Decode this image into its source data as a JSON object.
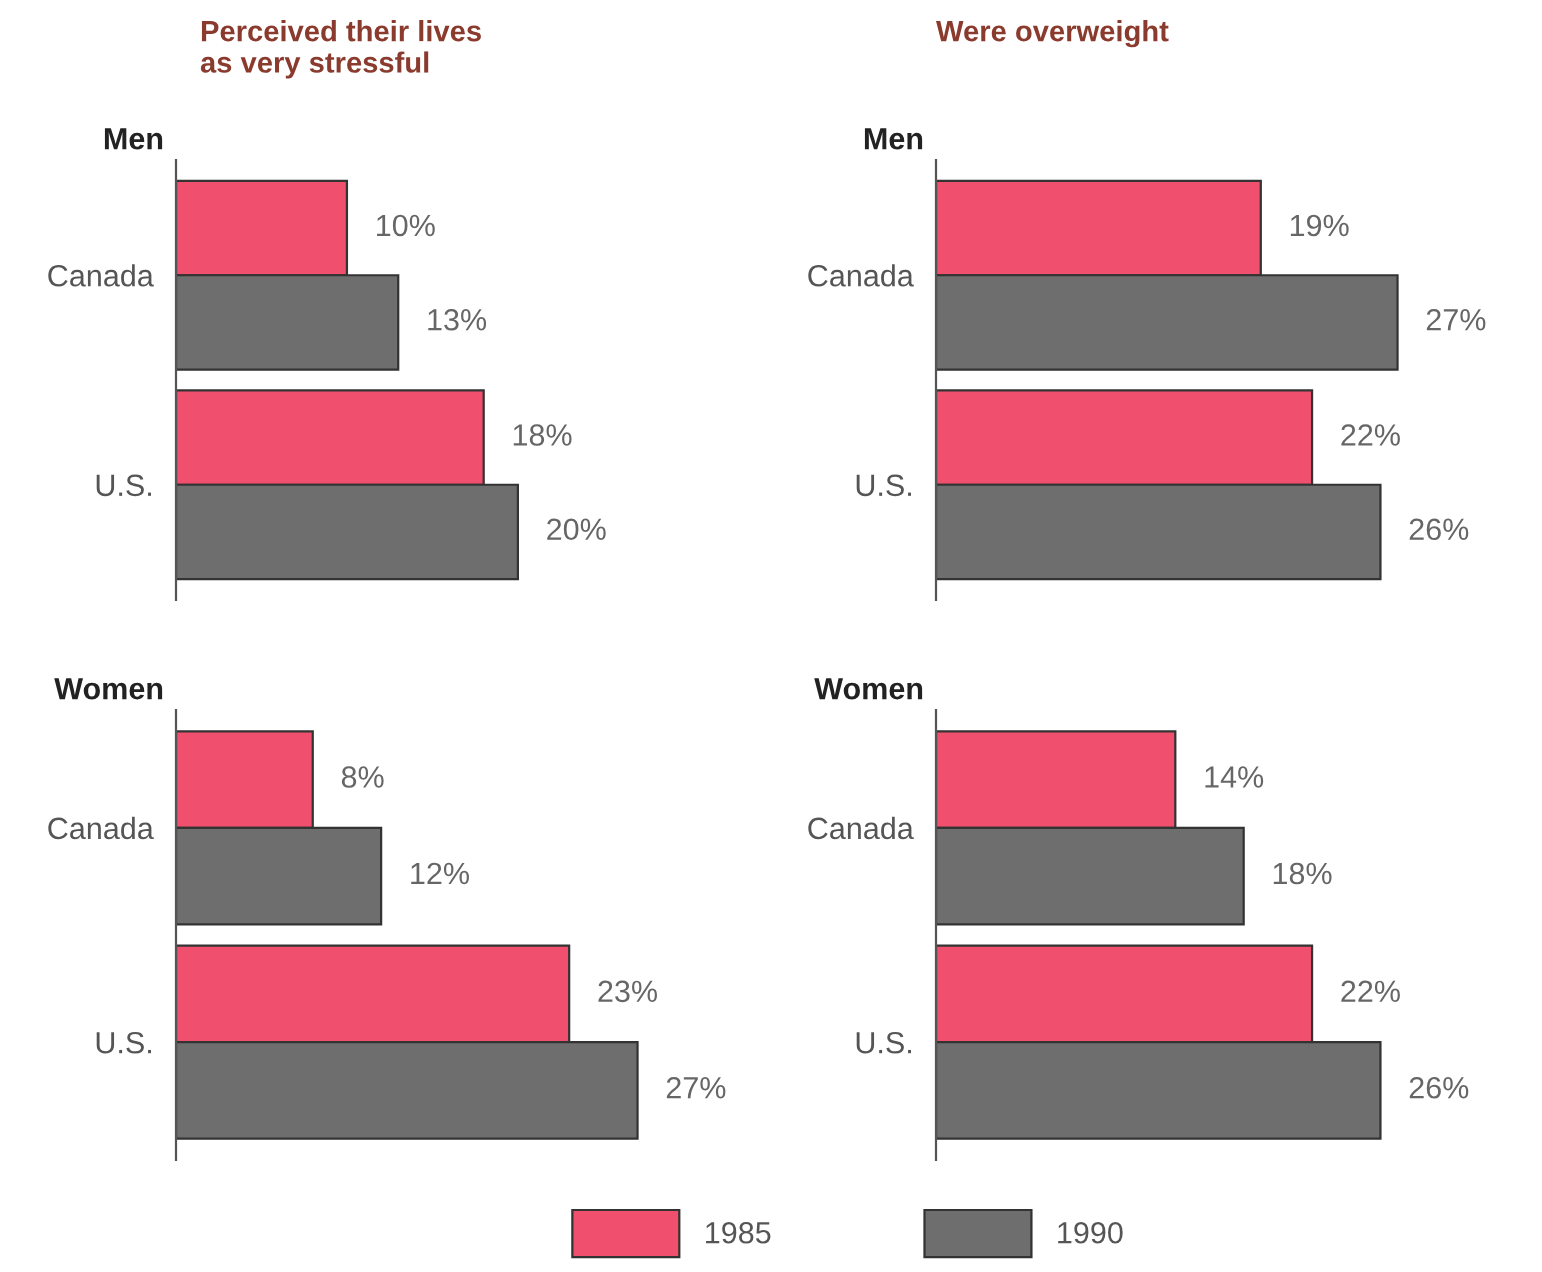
{
  "chart_data": [
    {
      "type": "bar",
      "orientation": "horizontal",
      "title": "Perceived their lives\nas very stressful",
      "subtitle": "Men",
      "categories": [
        "Canada",
        "U.S."
      ],
      "tick_labels": "y",
      "legend": "bottom",
      "series": [
        {
          "name": "1985",
          "color": "#f0506e",
          "values": [
            10,
            18
          ],
          "value_labels": [
            "10%",
            "18%"
          ]
        },
        {
          "name": "1990",
          "color": "#6e6e6e",
          "values": [
            13,
            20
          ],
          "value_labels": [
            "13%",
            "20%"
          ]
        }
      ]
    },
    {
      "type": "bar",
      "orientation": "horizontal",
      "title": "Were overweight",
      "subtitle": "Men",
      "categories": [
        "Canada",
        "U.S."
      ],
      "tick_labels": "y",
      "series": [
        {
          "color": "#f0506e",
          "values": [
            19,
            22
          ],
          "value_labels": [
            "19%",
            "22%"
          ]
        },
        {
          "color": "#6e6e6e",
          "values": [
            27,
            26
          ],
          "value_labels": [
            "27%",
            "26%"
          ]
        }
      ]
    },
    {
      "type": "bar",
      "orientation": "horizontal",
      "subtitle": "Women",
      "categories": [
        "Canada",
        "U.S."
      ],
      "tick_labels": "y",
      "series": [
        {
          "color": "#f0506e",
          "values": [
            8,
            23
          ],
          "value_labels": [
            "8%",
            "23%"
          ]
        },
        {
          "color": "#6e6e6e",
          "values": [
            12,
            27
          ],
          "value_labels": [
            "12%",
            "27%"
          ]
        }
      ]
    },
    {
      "type": "bar",
      "orientation": "horizontal",
      "subtitle": "Women",
      "categories": [
        "Canada",
        "U.S."
      ],
      "tick_labels": "y",
      "series": [
        {
          "color": "#f0506e",
          "values": [
            14,
            22
          ],
          "value_labels": [
            "14%",
            "22%"
          ]
        },
        {
          "color": "#6e6e6e",
          "values": [
            18,
            26
          ],
          "value_labels": [
            "18%",
            "26%"
          ]
        }
      ]
    }
  ]
}
